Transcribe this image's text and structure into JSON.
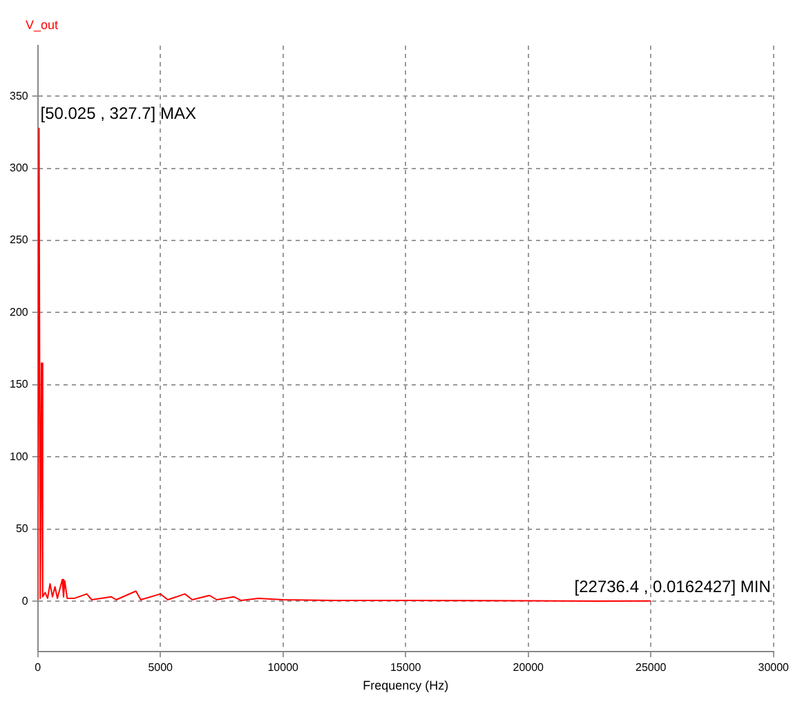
{
  "chart_data": {
    "type": "line",
    "xlabel": "Frequency (Hz)",
    "x": [
      0,
      50.025,
      100,
      150,
      200,
      300,
      400,
      500,
      600,
      700,
      800,
      1000,
      1050,
      1100,
      1200,
      1500,
      2000,
      2200,
      3000,
      3200,
      4000,
      4200,
      5000,
      5300,
      6000,
      6300,
      7000,
      7300,
      8000,
      8300,
      9000,
      10000,
      12000,
      15000,
      18000,
      20000,
      22736.4,
      25000
    ],
    "series": [
      {
        "name": "V_out",
        "color": "#ff0000",
        "values": [
          1,
          327.7,
          2,
          165,
          3,
          6,
          2,
          12,
          3,
          10,
          2,
          15,
          3,
          14,
          2,
          2,
          5,
          1,
          3,
          1,
          7,
          1,
          5,
          1,
          5,
          1,
          4,
          1,
          3,
          0.5,
          2,
          1,
          0.5,
          0.5,
          0.4,
          0.3,
          0.0162427,
          0.2
        ]
      }
    ],
    "xlim": [
      0,
      30000
    ],
    "xticks": [
      0,
      5000,
      10000,
      15000,
      20000,
      25000,
      30000
    ],
    "ylim": [
      -35,
      385
    ],
    "yticks": [
      0,
      50,
      100,
      150,
      200,
      250,
      300,
      350
    ],
    "grid": true,
    "legend": "top left",
    "marker": "none",
    "line_style": "solid",
    "annotations": [
      {
        "text": "[50.025 , 327.7] MAX",
        "x": 50.025,
        "y": 327.7
      },
      {
        "text": "[22736.4 , 0.0162427] MIN",
        "x": 22736.4,
        "y": 0.0162427
      }
    ]
  }
}
